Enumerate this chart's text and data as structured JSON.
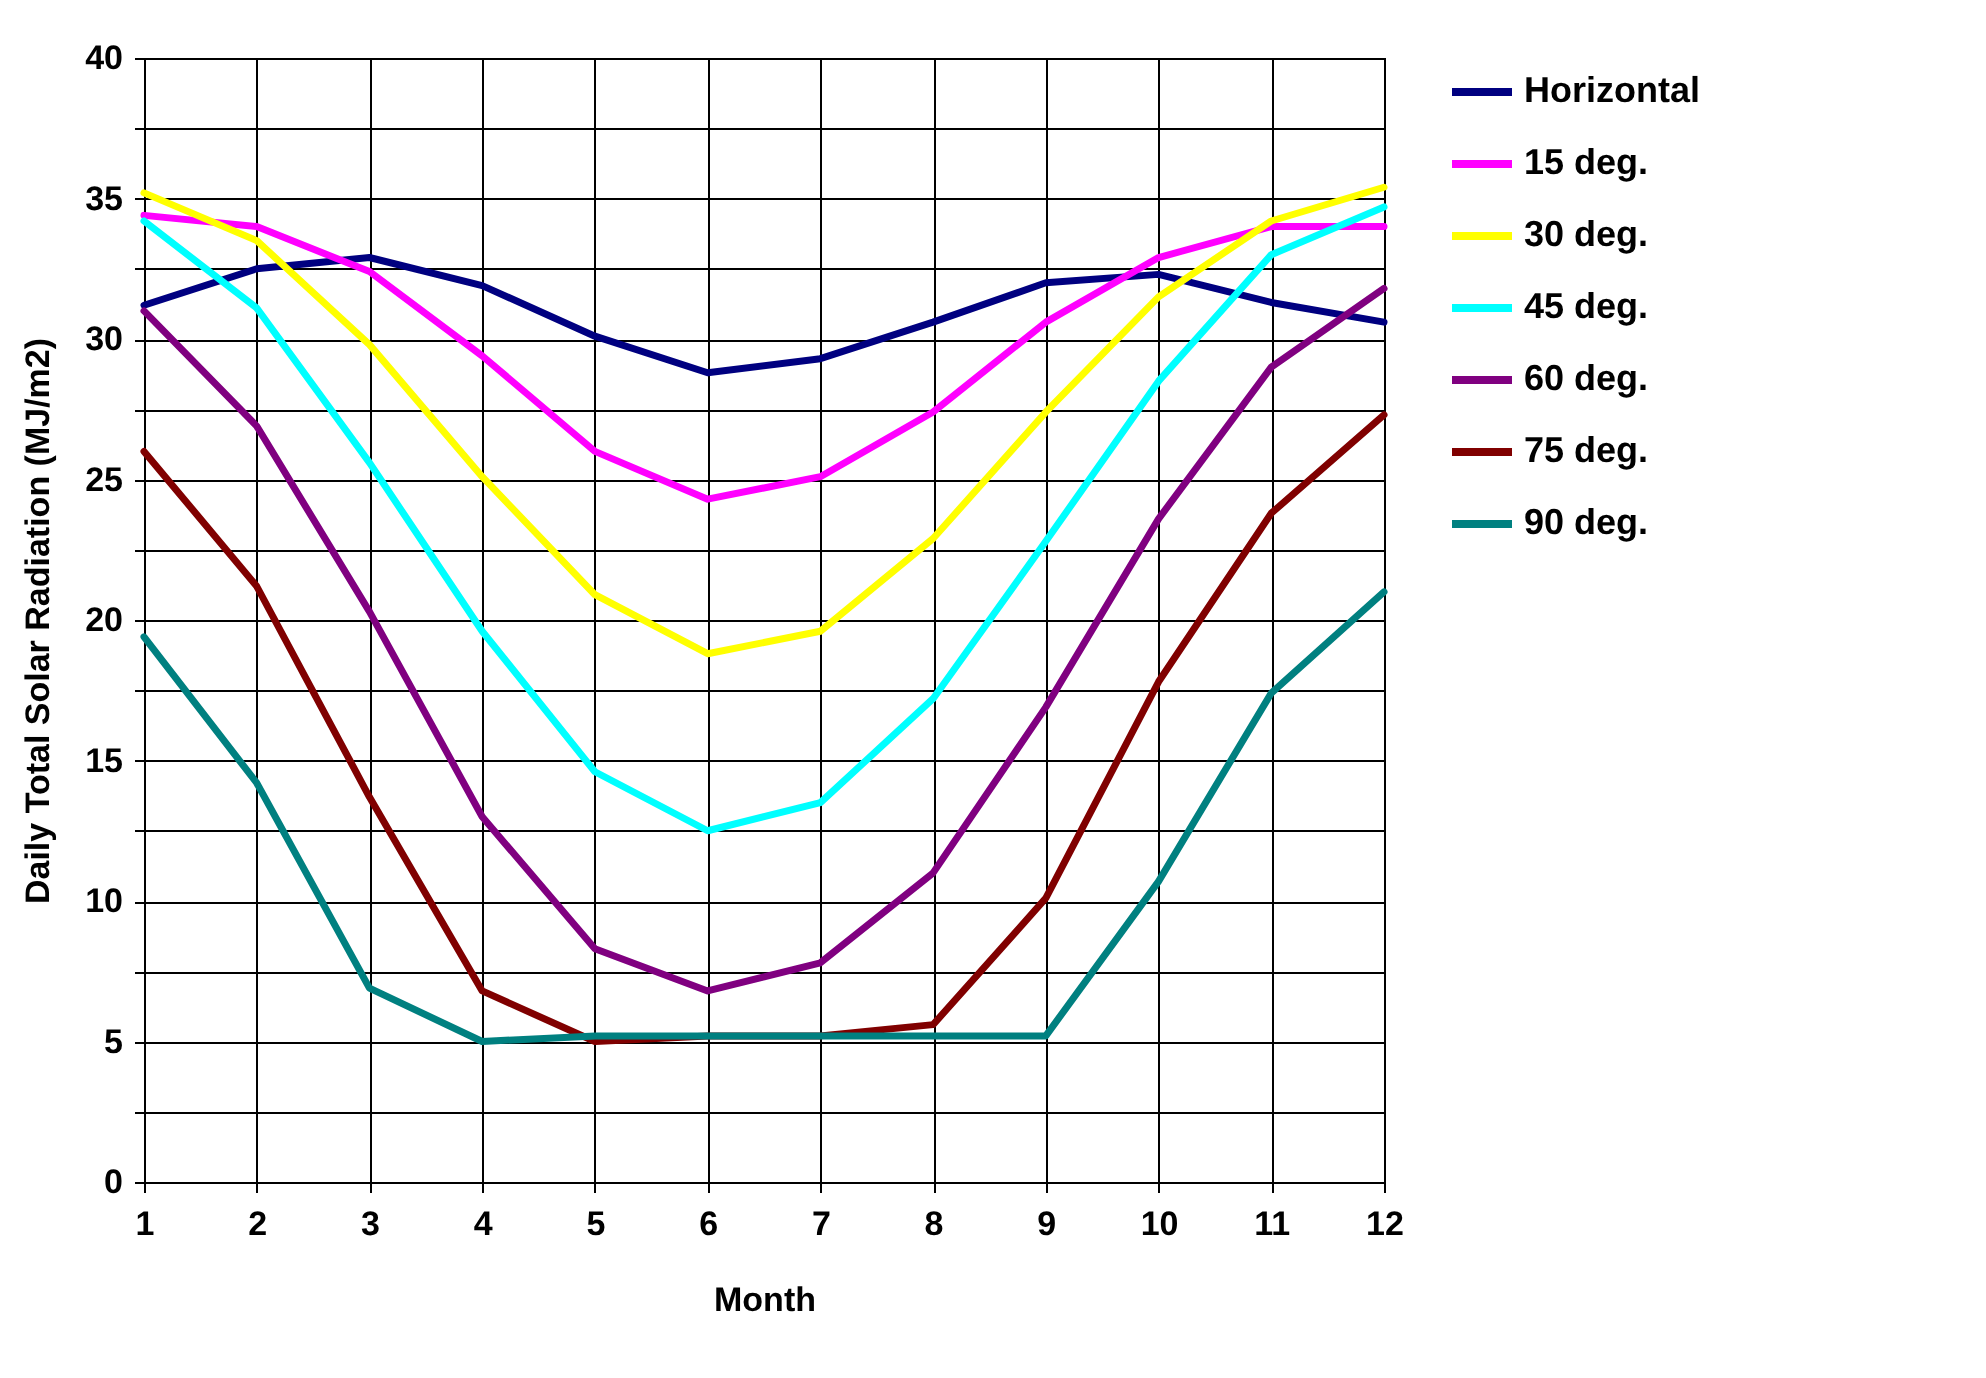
{
  "chart_data": {
    "type": "line",
    "xlabel": "Month",
    "ylabel": "Daily Total Solar Radiation (MJ/m2)",
    "x": [
      1,
      2,
      3,
      4,
      5,
      6,
      7,
      8,
      9,
      10,
      11,
      12
    ],
    "xlim": [
      1,
      12
    ],
    "xticks": [
      1,
      2,
      3,
      4,
      5,
      6,
      7,
      8,
      9,
      10,
      11,
      12
    ],
    "ylim": [
      0,
      40
    ],
    "yticks": [
      0,
      {
        "value": 2.5,
        "label": null
      },
      5,
      {
        "value": 7.5,
        "label": null
      },
      10,
      {
        "value": 12.5,
        "label": null
      },
      15,
      {
        "value": 17.5,
        "label": null
      },
      20,
      {
        "value": 22.5,
        "label": null
      },
      25,
      {
        "value": 27.5,
        "label": null
      },
      30,
      {
        "value": 32.5,
        "label": null
      },
      35,
      {
        "value": 37.5,
        "label": null
      },
      40
    ],
    "grid": true,
    "legend": "right",
    "marker": "none",
    "line_style": "solid",
    "series": [
      {
        "name": "Horizontal",
        "color": "#000080",
        "values": [
          31.2,
          32.5,
          32.9,
          31.9,
          30.1,
          28.8,
          29.3,
          30.6,
          32.0,
          32.3,
          31.3,
          30.6
        ]
      },
      {
        "name": "15 deg.",
        "color": "#ff00ff",
        "values": [
          34.4,
          34.0,
          32.4,
          29.4,
          26.0,
          24.3,
          25.1,
          27.4,
          30.6,
          32.9,
          34.0,
          34.0
        ]
      },
      {
        "name": "30 deg.",
        "color": "#ffff00",
        "values": [
          35.2,
          33.5,
          29.8,
          25.1,
          20.9,
          18.8,
          19.6,
          22.9,
          27.4,
          31.5,
          34.2,
          35.4
        ]
      },
      {
        "name": "45 deg.",
        "color": "#00ffff",
        "values": [
          34.2,
          31.1,
          25.6,
          19.6,
          14.6,
          12.5,
          13.5,
          17.2,
          22.8,
          28.5,
          33.0,
          34.7
        ]
      },
      {
        "name": "60 deg.",
        "color": "#800080",
        "values": [
          31.0,
          26.9,
          20.3,
          13.0,
          8.3,
          6.8,
          7.8,
          11.0,
          16.9,
          23.6,
          29.0,
          31.8
        ]
      },
      {
        "name": "75 deg.",
        "color": "#800000",
        "values": [
          26.0,
          21.2,
          13.7,
          6.8,
          5.0,
          5.2,
          5.2,
          5.6,
          10.1,
          17.8,
          23.8,
          27.3
        ]
      },
      {
        "name": "90 deg.",
        "color": "#008080",
        "values": [
          19.4,
          14.2,
          6.9,
          5.0,
          5.2,
          5.2,
          5.2,
          5.2,
          5.2,
          10.7,
          17.4,
          21.0
        ]
      }
    ]
  }
}
